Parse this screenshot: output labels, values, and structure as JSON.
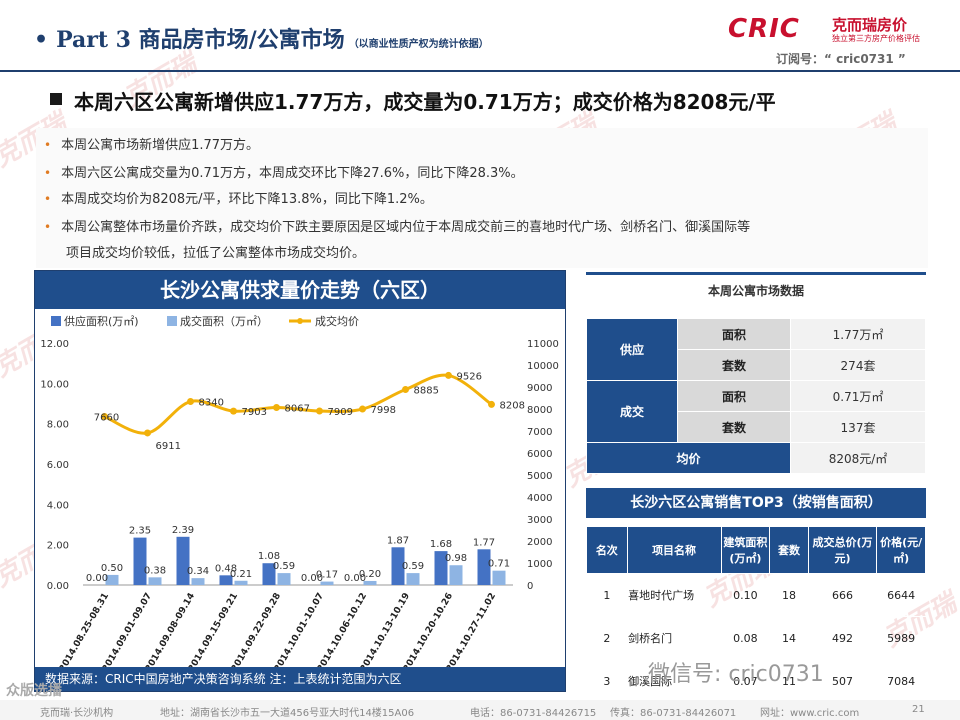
{
  "header": {
    "bullet": "•",
    "title": "Part 3 商品房市场/公寓市场",
    "subtitle": "（以商业性质产权为统计依据）",
    "logo_text": "CRIC",
    "logo_cn": "克而瑞房价",
    "logo_tagline": "独立第三方房产价格评估",
    "subscribe": "订阅号：“ cric0731 ”",
    "watermark": "克而瑞"
  },
  "headline": "本周六区公寓新增供应1.77万方，成交量为0.71万方；成交价格为8208元/平",
  "bullets": [
    "本周公寓市场新增供应1.77万方。",
    "本周六区公寓成交量为0.71万方，本周成交环比下降27.6%，同比下降28.3%。",
    "本周成交均价为8208元/平，环比下降13.8%，同比下降1.2%。",
    "本周公寓整体市场量价齐跌，成交均价下跌主要原因是区域内位于本周成交前三的喜地时代广场、剑桥名门、御溪国际等",
    "项目成交均价较低，拉低了公寓整体市场成交均价。"
  ],
  "chart_data": {
    "type": "bar",
    "title": "长沙公寓供求量价走势（六区）",
    "categories": [
      "2014.08.25-08.31",
      "2014.09.01-09.07",
      "2014.09.08-09.14",
      "2014.09.15-09.21",
      "2014.09.22-09.28",
      "2014.10.01-10.07",
      "2014.10.06-10.12",
      "2014.10.13-10.19",
      "2014.10.20-10.26",
      "2014.10.27-11.02"
    ],
    "series": [
      {
        "name": "供应面积(万㎡)",
        "type": "bar",
        "axis": "left",
        "color": "#4472c4",
        "values": [
          0.0,
          2.35,
          2.39,
          0.48,
          1.08,
          0.0,
          0.0,
          1.87,
          1.68,
          1.77
        ]
      },
      {
        "name": "成交面积（万㎡）",
        "type": "bar",
        "axis": "left",
        "color": "#8eb4e3",
        "values": [
          0.5,
          0.38,
          0.34,
          0.21,
          0.59,
          0.17,
          0.2,
          0.59,
          0.98,
          0.71
        ]
      },
      {
        "name": "成交均价",
        "type": "line",
        "axis": "right",
        "color": "#f2b10a",
        "values": [
          7660,
          6911,
          8340,
          7903,
          8067,
          7909,
          7998,
          8885,
          9526,
          8208
        ]
      }
    ],
    "left_axis": {
      "min": 0,
      "max": 12,
      "ticks": [
        "0.00",
        "2.00",
        "4.00",
        "6.00",
        "8.00",
        "10.00",
        "12.00"
      ]
    },
    "right_axis": {
      "min": 0,
      "max": 11000,
      "ticks": [
        "0",
        "1000",
        "2000",
        "3000",
        "4000",
        "5000",
        "6000",
        "7000",
        "8000",
        "9000",
        "10000",
        "11000"
      ]
    },
    "source": "数据来源：CRIC中国房地产决策咨询系统    注：上表统计范围为六区"
  },
  "market": {
    "title": "本周公寓市场数据",
    "rows": [
      {
        "group": "供应",
        "label": "面积",
        "value": "1.77万㎡"
      },
      {
        "group": "",
        "label": "套数",
        "value": "274套"
      },
      {
        "group": "成交",
        "label": "面积",
        "value": "0.71万㎡"
      },
      {
        "group": "",
        "label": "套数",
        "value": "137套"
      }
    ],
    "avg_label": "均价",
    "avg_value": "8208元/㎡"
  },
  "top3": {
    "title": "长沙六区公寓销售TOP3（按销售面积）",
    "headers": [
      "名次",
      "项目名称",
      "建筑面积(万㎡)",
      "套数",
      "成交总价(万元)",
      "价格(元/㎡)"
    ],
    "rows": [
      [
        "1",
        "喜地时代广场",
        "0.10",
        "18",
        "666",
        "6644"
      ],
      [
        "2",
        "剑桥名门",
        "0.08",
        "14",
        "492",
        "5989"
      ],
      [
        "3",
        "御溪国际",
        "0.07",
        "11",
        "507",
        "7084"
      ]
    ]
  },
  "footer": {
    "org": "克而瑞·长沙机构",
    "address": "地址：湖南省长沙市五一大道456号亚大时代14楼15A06",
    "phone": "电话：86-0731-84426715",
    "fax": "传真：86-0731-84426071",
    "web": "网址：www.cric.com",
    "page": "21"
  },
  "overlays": {
    "wechat": "微信号: cric0731",
    "corner": "众版选播"
  }
}
